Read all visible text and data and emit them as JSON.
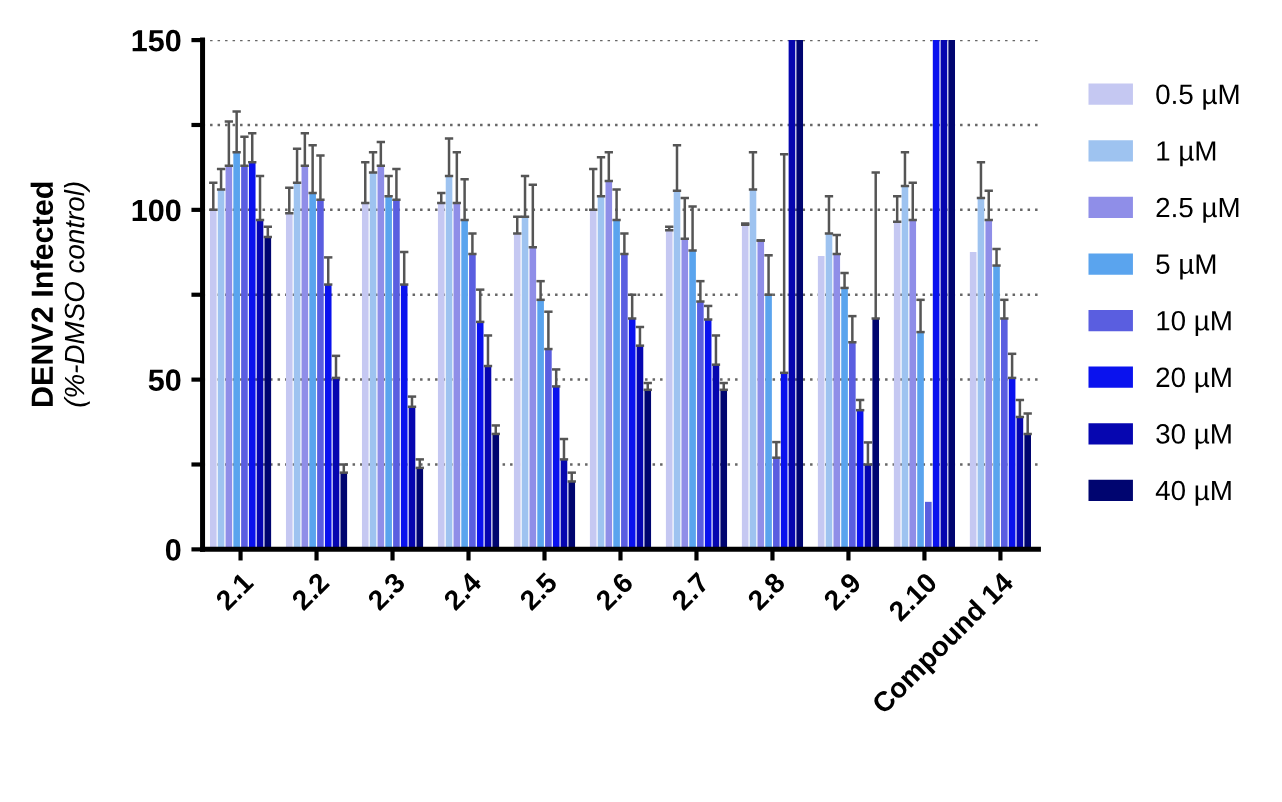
{
  "chart_data": {
    "type": "bar",
    "ylabel": "DENV2 Infected\n(%-DMSO control)",
    "categories": [
      "2.1",
      "2.2",
      "2.3",
      "2.4",
      "2.5",
      "2.6",
      "2.7",
      "2.8",
      "2.9",
      "2.10",
      "Compound 14"
    ],
    "ylim": [
      0,
      150
    ],
    "yticks": [
      0,
      {
        "value": 25,
        "label": null
      },
      50,
      {
        "value": 75,
        "label": null
      },
      100,
      {
        "value": 125,
        "label": null
      },
      150
    ],
    "grid": "y",
    "legend": "right",
    "series": [
      {
        "name": "0.5 µM",
        "color": "#c5c8f2",
        "values": [
          100,
          99,
          102,
          102,
          93,
          100,
          94,
          95.6,
          86.4,
          96.5,
          87.6
        ],
        "errors": [
          [
            100,
            108
          ],
          [
            99,
            106.5
          ],
          [
            102,
            114
          ],
          [
            102,
            105
          ],
          [
            93,
            98
          ],
          [
            100,
            112
          ],
          [
            94,
            95
          ],
          [
            95.6,
            96
          ],
          null,
          [
            96.5,
            104
          ],
          null
        ]
      },
      {
        "name": "1 µM",
        "color": "#9ec3f0",
        "values": [
          106,
          108,
          111,
          110,
          98,
          104,
          105.6,
          106,
          93,
          107,
          103.5
        ],
        "errors": [
          [
            106,
            112
          ],
          [
            108,
            118
          ],
          [
            111,
            117
          ],
          [
            110,
            121
          ],
          [
            98,
            110
          ],
          [
            104,
            115.5
          ],
          [
            105.6,
            119
          ],
          [
            106,
            117
          ],
          [
            93,
            104
          ],
          [
            107,
            117
          ],
          [
            103.5,
            114
          ]
        ]
      },
      {
        "name": "2.5 µM",
        "color": "#8f8ee8",
        "values": [
          113,
          113,
          113,
          102,
          89,
          108.5,
          91.5,
          91,
          87,
          97,
          97
        ],
        "errors": [
          [
            113,
            126
          ],
          [
            113,
            122.6
          ],
          [
            113,
            120
          ],
          [
            102,
            117
          ],
          [
            89,
            107.4
          ],
          [
            108.5,
            117
          ],
          [
            91.5,
            103.5
          ],
          [
            91,
            91
          ],
          [
            87,
            92.6
          ],
          [
            97,
            108
          ],
          [
            97,
            105.6
          ]
        ]
      },
      {
        "name": "5 µM",
        "color": "#5aa4ee",
        "values": [
          117,
          105,
          104,
          97,
          73.5,
          97,
          88,
          75,
          77,
          64,
          83.6
        ],
        "errors": [
          [
            117,
            129
          ],
          [
            105,
            119
          ],
          [
            104,
            110
          ],
          [
            97,
            109
          ],
          [
            73.5,
            79
          ],
          [
            97,
            106
          ],
          [
            88,
            101
          ],
          [
            75,
            86.6
          ],
          [
            77,
            81.4
          ],
          [
            64,
            73.5
          ],
          [
            83.6,
            88.5
          ]
        ]
      },
      {
        "name": "10 µM",
        "color": "#5a5ee0",
        "values": [
          113,
          103,
          103,
          87,
          59,
          87,
          73,
          27,
          61,
          14,
          68
        ],
        "errors": [
          [
            113,
            121.5
          ],
          [
            103,
            116
          ],
          [
            103,
            112
          ],
          [
            87,
            93
          ],
          [
            59,
            70
          ],
          [
            87,
            93
          ],
          [
            73,
            79
          ],
          [
            27,
            31.6
          ],
          [
            61,
            68.7
          ],
          null,
          [
            68,
            73.5
          ]
        ]
      },
      {
        "name": "20 µM",
        "color": "#0a12ee",
        "values": [
          114,
          78,
          78,
          67,
          48,
          68,
          67.7,
          52,
          41,
          150,
          50.5
        ],
        "errors": [
          [
            114,
            122.6
          ],
          [
            78,
            86
          ],
          [
            78,
            87.6
          ],
          [
            67,
            76.5
          ],
          [
            48,
            53
          ],
          [
            68,
            75
          ],
          [
            67.7,
            71.7
          ],
          [
            52,
            116.4
          ],
          [
            41,
            44
          ],
          null,
          [
            50.5,
            57.6
          ]
        ]
      },
      {
        "name": "30 µM",
        "color": "#0606b0",
        "values": [
          97,
          50.5,
          42,
          54,
          26.5,
          60,
          54.4,
          150,
          25,
          150,
          39
        ],
        "errors": [
          [
            97,
            110
          ],
          [
            50.5,
            57
          ],
          [
            42,
            45
          ],
          [
            54,
            63
          ],
          [
            26.5,
            32.5
          ],
          [
            60,
            65.5
          ],
          [
            54.4,
            63
          ],
          null,
          [
            25,
            31.5
          ],
          null,
          [
            39,
            44
          ]
        ]
      },
      {
        "name": "40 µM",
        "color": "#000570",
        "values": [
          92,
          22.6,
          24,
          34,
          20,
          47,
          47,
          150,
          68,
          150,
          34
        ],
        "errors": [
          [
            92,
            95
          ],
          [
            22.6,
            25
          ],
          [
            24,
            26.5
          ],
          [
            34,
            36.5
          ],
          [
            20,
            22.6
          ],
          [
            47,
            49
          ],
          [
            47,
            49
          ],
          null,
          [
            68,
            111
          ],
          null,
          [
            34,
            40
          ]
        ]
      }
    ]
  }
}
